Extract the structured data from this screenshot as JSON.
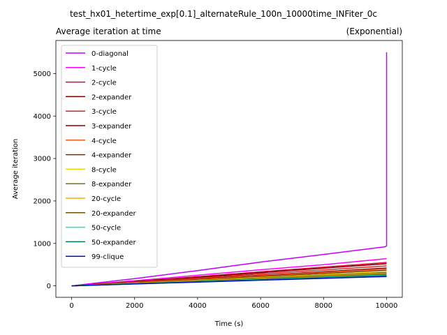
{
  "chart_data": {
    "type": "line",
    "figure_title": "test_hx01_hetertime_exp[0.1]_alternateRule_100n_10000time_INFiter_0c",
    "title_left": "Average iteration at time",
    "title_right": "(Exponential)",
    "xlabel": "Time (s)",
    "ylabel": "Average iteration",
    "xlim": [
      -500,
      10500
    ],
    "ylim": [
      -270,
      5780
    ],
    "xticks": [
      0,
      2000,
      4000,
      6000,
      8000,
      10000
    ],
    "yticks": [
      0,
      1000,
      2000,
      3000,
      4000,
      5000
    ],
    "grid": false,
    "legend_position": "upper-left",
    "series": [
      {
        "name": "0-diagonal",
        "color": "#bf00ff",
        "x": [
          0,
          2000,
          4000,
          6000,
          8000,
          9950,
          10000,
          10000
        ],
        "y": [
          0,
          170,
          360,
          560,
          740,
          920,
          940,
          5500
        ]
      },
      {
        "name": "1-cycle",
        "color": "#ff00ff",
        "x": [
          0,
          2000,
          4000,
          6000,
          8000,
          10000
        ],
        "y": [
          0,
          120,
          250,
          380,
          500,
          640
        ]
      },
      {
        "name": "2-cycle",
        "color": "#e0003a",
        "x": [
          0,
          2000,
          4000,
          6000,
          8000,
          10000
        ],
        "y": [
          0,
          105,
          215,
          330,
          440,
          550
        ]
      },
      {
        "name": "2-expander",
        "color": "#7a0000",
        "x": [
          0,
          2000,
          4000,
          6000,
          8000,
          10000
        ],
        "y": [
          0,
          100,
          205,
          310,
          415,
          520
        ]
      },
      {
        "name": "3-cycle",
        "color": "#e02020",
        "x": [
          0,
          2000,
          4000,
          6000,
          8000,
          10000
        ],
        "y": [
          0,
          90,
          185,
          280,
          375,
          470
        ]
      },
      {
        "name": "3-expander",
        "color": "#800000",
        "x": [
          0,
          2000,
          4000,
          6000,
          8000,
          10000
        ],
        "y": [
          0,
          82,
          165,
          250,
          335,
          420
        ]
      },
      {
        "name": "4-cycle",
        "color": "#f05a1a",
        "x": [
          0,
          2000,
          4000,
          6000,
          8000,
          10000
        ],
        "y": [
          0,
          78,
          158,
          238,
          318,
          400
        ]
      },
      {
        "name": "4-expander",
        "color": "#7a3000",
        "x": [
          0,
          2000,
          4000,
          6000,
          8000,
          10000
        ],
        "y": [
          0,
          72,
          146,
          220,
          294,
          370
        ]
      },
      {
        "name": "8-cycle",
        "color": "#e8d800",
        "x": [
          0,
          2000,
          4000,
          6000,
          8000,
          10000
        ],
        "y": [
          0,
          66,
          133,
          200,
          268,
          335
        ]
      },
      {
        "name": "8-expander",
        "color": "#7a7000",
        "x": [
          0,
          2000,
          4000,
          6000,
          8000,
          10000
        ],
        "y": [
          0,
          62,
          125,
          188,
          251,
          315
        ]
      },
      {
        "name": "20-cycle",
        "color": "#f0b000",
        "x": [
          0,
          2000,
          4000,
          6000,
          8000,
          10000
        ],
        "y": [
          0,
          58,
          117,
          176,
          235,
          295
        ]
      },
      {
        "name": "20-expander",
        "color": "#6a5400",
        "x": [
          0,
          2000,
          4000,
          6000,
          8000,
          10000
        ],
        "y": [
          0,
          54,
          109,
          164,
          219,
          275
        ]
      },
      {
        "name": "50-cycle",
        "color": "#20e0c0",
        "x": [
          0,
          2000,
          4000,
          6000,
          8000,
          10000
        ],
        "y": [
          0,
          50,
          101,
          152,
          203,
          255
        ]
      },
      {
        "name": "50-expander",
        "color": "#007a60",
        "x": [
          0,
          2000,
          4000,
          6000,
          8000,
          10000
        ],
        "y": [
          0,
          47,
          95,
          143,
          191,
          240
        ]
      },
      {
        "name": "99-clique",
        "color": "#0010c0",
        "x": [
          0,
          2000,
          4000,
          6000,
          8000,
          10000
        ],
        "y": [
          0,
          44,
          88,
          132,
          176,
          220
        ]
      }
    ]
  }
}
